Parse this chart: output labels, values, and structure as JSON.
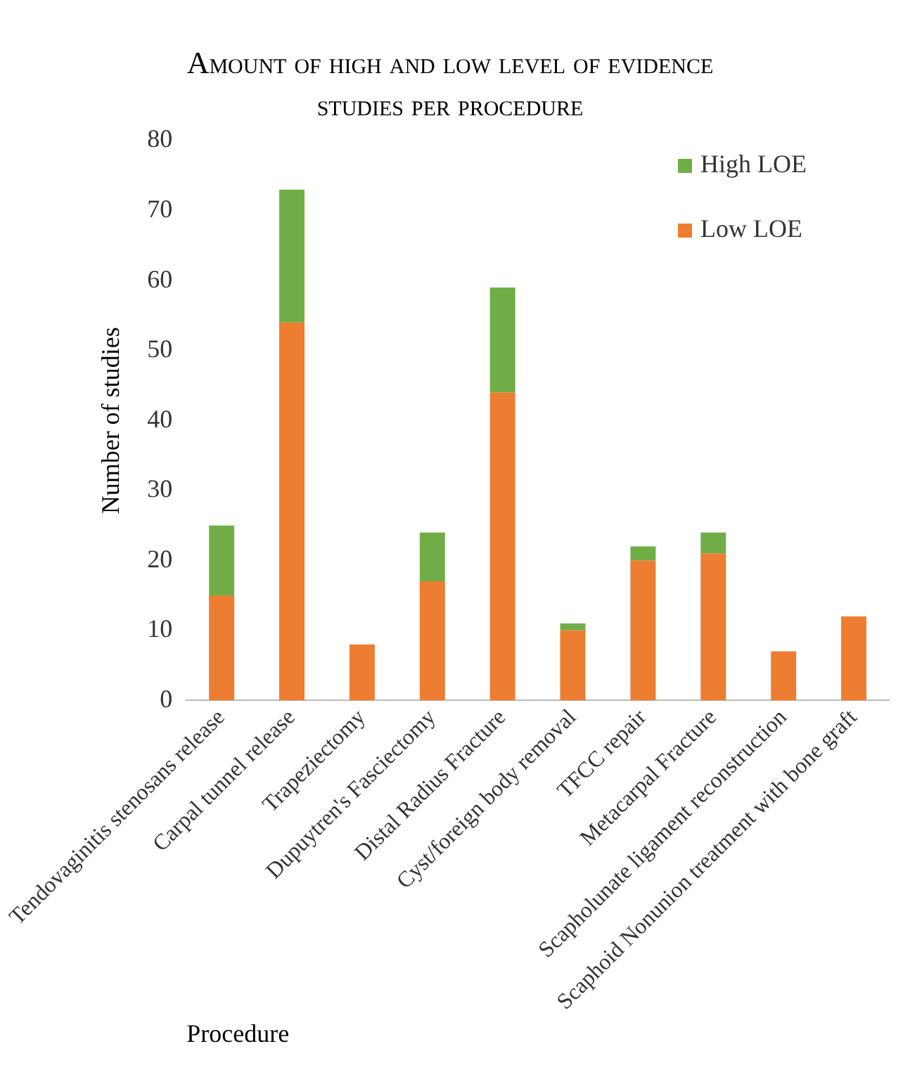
{
  "chart_data": {
    "type": "bar",
    "title": "Amount of high and low level of evidence studies per procedure",
    "xlabel": "Procedure",
    "ylabel": "Number of studies",
    "categories": [
      "Tendovaginitis stenosans release",
      "Carpal tunnel release",
      "Trapeziectomy",
      "Dupuytren's Fasciectomy",
      "Distal Radius Fracture",
      "Cyst/foreign body removal",
      "TFCC repair",
      "Metacarpal Fracture",
      "Scapholunate ligament reconstruction",
      "Scaphoid Nonunion treatment with bone graft"
    ],
    "series": [
      {
        "name": "Low LOE",
        "color": "#ed7d31",
        "values": [
          15,
          54,
          8,
          17,
          44,
          10,
          20,
          21,
          7,
          12
        ]
      },
      {
        "name": "High LOE",
        "color": "#70ad47",
        "values": [
          10,
          19,
          0,
          7,
          15,
          1,
          2,
          3,
          0,
          0
        ]
      }
    ],
    "stacked": true,
    "ylim": [
      0,
      80
    ],
    "yticks": [
      0,
      10,
      20,
      30,
      40,
      50,
      60,
      70,
      80
    ],
    "grid": false,
    "legend": "top right"
  }
}
